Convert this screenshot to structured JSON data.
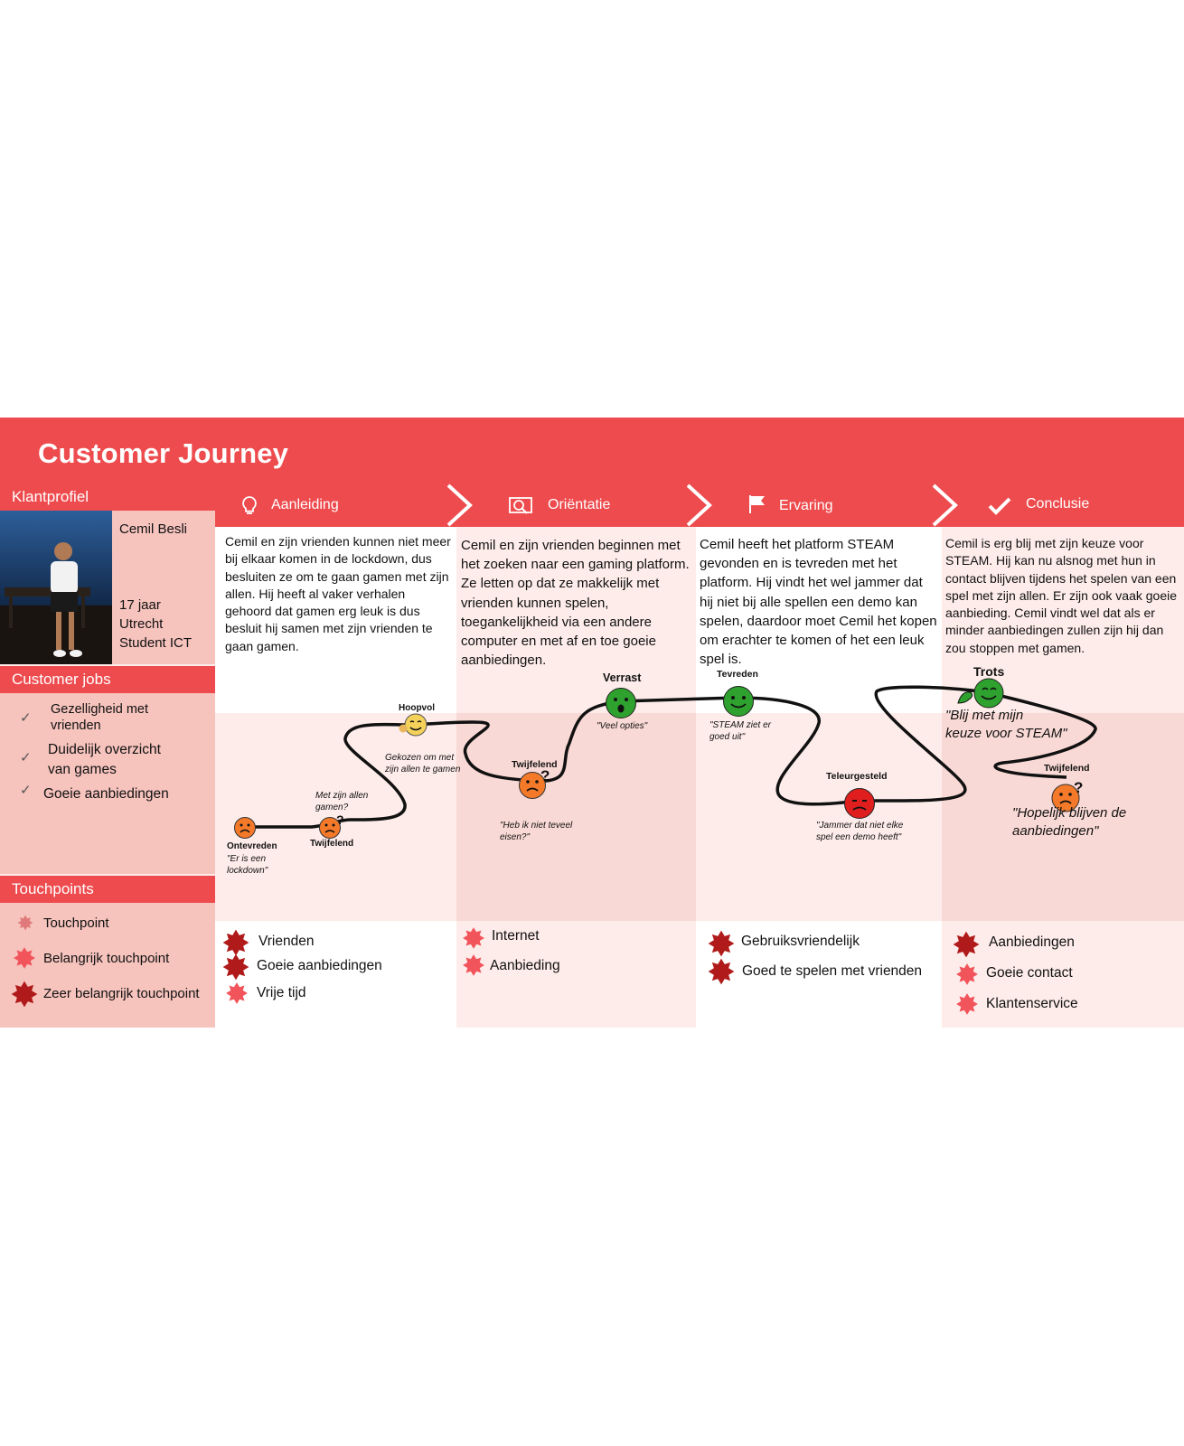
{
  "title": "Customer Journey",
  "colors": {
    "red": "#ee4b4e",
    "pink_light": "#fdecea",
    "pink_mid": "#f9d9d5",
    "pink_dark": "#f6c3bd",
    "dark_red": "#b01a1a",
    "green": "#2ea12e",
    "orange": "#f47a2a"
  },
  "profile": {
    "header": "Klantprofiel",
    "name": "Cemil Besli",
    "age": "17 jaar",
    "city": "Utrecht",
    "role": "Student ICT"
  },
  "jobs": {
    "header": "Customer jobs",
    "items": [
      {
        "line1": "Gezelligheid met",
        "line2": "vrienden"
      },
      {
        "line1": "Duidelijk overzicht",
        "line2": "van games"
      },
      {
        "line1": "Goeie aanbiedingen",
        "line2": ""
      }
    ]
  },
  "touchpoints_legend": {
    "header": "Touchpoints",
    "items": [
      "Touchpoint",
      "Belangrijk touchpoint",
      "Zeer belangrijk touchpoint"
    ]
  },
  "phases": [
    {
      "label": "Aanleiding",
      "icon": "lightbulb-icon",
      "description": "Cemil en zijn vrienden kunnen niet meer bij elkaar komen in de lockdown, dus besluiten ze om te gaan gamen met zijn allen. Hij heeft al vaker verhalen gehoord dat gamen erg leuk is dus besluit hij samen met zijn vrienden te gaan gamen.",
      "touchpoints": [
        "Vrienden",
        "Goeie aanbiedingen",
        "Vrije tijd"
      ]
    },
    {
      "label": "Oriëntatie",
      "icon": "search-screen-icon",
      "description": "Cemil en zijn vrienden beginnen met het zoeken naar een gaming platform. Ze letten op dat ze makkelijk met vrienden kunnen spelen, toegankelijkheid via een andere computer en met af en toe goeie aanbiedingen.",
      "touchpoints": [
        "Internet",
        "Aanbieding"
      ]
    },
    {
      "label": "Ervaring",
      "icon": "flag-icon",
      "description": "Cemil heeft het platform STEAM gevonden en is tevreden met het platform. Hij vindt het wel jammer dat hij niet bij alle spellen een demo kan spelen, daardoor moet Cemil het kopen om erachter te komen of het een leuk spel is.",
      "touchpoints": [
        "Gebruiksvriendelijk",
        "Goed te spelen met vrienden"
      ]
    },
    {
      "label": "Conclusie",
      "icon": "checkmark-icon",
      "description": "Cemil is erg blij met zijn keuze voor STEAM. Hij kan nu alsnog met hun in contact blijven tijdens het spelen van een spel met zijn allen. Er zijn ook vaak goeie aanbieding. Cemil vindt wel dat als er minder aanbiedingen zullen zijn hij dan zou stoppen met gamen.",
      "touchpoints": [
        "Aanbiedingen",
        "Goeie contact",
        "Klantenservice"
      ]
    }
  ],
  "emotions": [
    {
      "label": "Ontevreden",
      "quote1": "\"Er is een",
      "quote2": "lockdown\"",
      "mood": "sad",
      "color": "orange"
    },
    {
      "label": "Twijfelend",
      "quote1": "Met zijn allen",
      "quote2": "gamen?",
      "mood": "doubt",
      "color": "orange"
    },
    {
      "label": "Hoopvol",
      "quote1": "Gekozen om met",
      "quote2": "zijn allen te gamen",
      "mood": "hopeful",
      "color": "yellow"
    },
    {
      "label": "Twijfelend",
      "quote1": "\"Heb ik niet teveel",
      "quote2": "eisen?\"",
      "mood": "doubt",
      "color": "orange"
    },
    {
      "label": "Verrast",
      "quote1": "\"Veel opties\"",
      "quote2": "",
      "mood": "surprised",
      "color": "green"
    },
    {
      "label": "Tevreden",
      "quote1": "\"STEAM ziet er",
      "quote2": "goed uit\"",
      "mood": "happy",
      "color": "green"
    },
    {
      "label": "Teleurgesteld",
      "quote1": "\"Jammer dat niet elke",
      "quote2": "spel een demo heeft\"",
      "mood": "sad",
      "color": "red"
    },
    {
      "label": "Trots",
      "quote1": "\"Blij met mijn",
      "quote2": "keuze voor STEAM\"",
      "mood": "proud",
      "color": "green"
    },
    {
      "label": "Twijfelend",
      "quote1": "\"Hopelijk blijven de",
      "quote2": "aanbiedingen\"",
      "mood": "doubt",
      "color": "orange"
    }
  ]
}
